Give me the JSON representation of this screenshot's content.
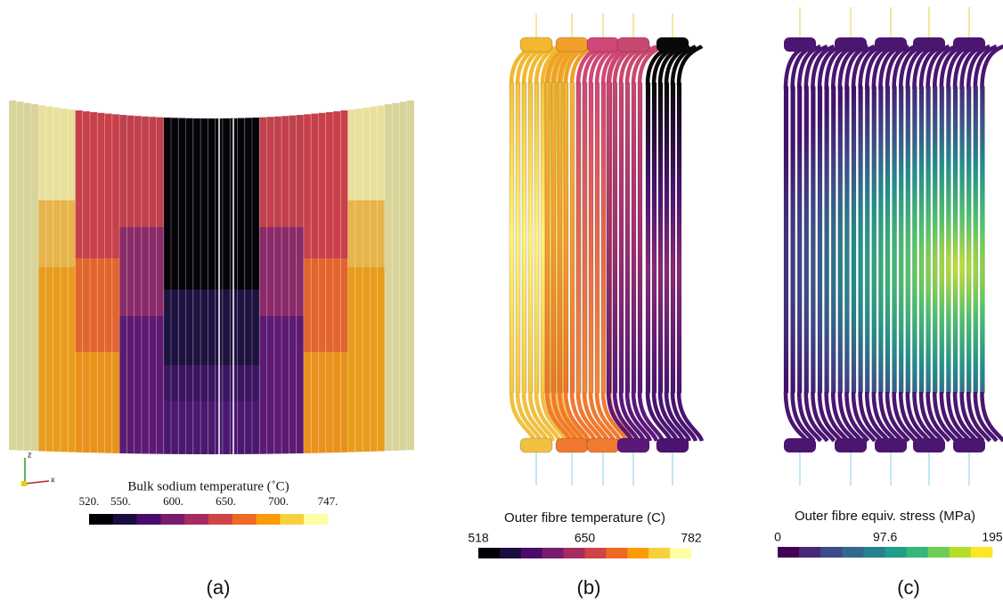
{
  "panels": [
    {
      "label": "(a)",
      "axes": [
        "z",
        "x"
      ],
      "colorbar": {
        "title": "Bulk sodium temperature (˚C)",
        "ticks": [
          "520.",
          "550.",
          "600.",
          "650.",
          "700.",
          "747."
        ],
        "colors": [
          "#000004",
          "#1b0c41",
          "#4a0c6b",
          "#781c6d",
          "#a52c60",
          "#cf4446",
          "#ed6925",
          "#fb9b06",
          "#f7d13d",
          "#fcffa4"
        ]
      }
    },
    {
      "label": "(b)",
      "colorbar": {
        "title": "Outer fibre temperature (C)",
        "ticks": [
          "518",
          "650",
          "782"
        ],
        "colors": [
          "#000004",
          "#1b0c41",
          "#4a0c6b",
          "#781c6d",
          "#a52c60",
          "#cf4446",
          "#ed6925",
          "#fb9b06",
          "#f7d13d",
          "#fcffa4"
        ]
      }
    },
    {
      "label": "(c)",
      "colorbar": {
        "title": "Outer fibre equiv. stress (MPa)",
        "ticks": [
          "0",
          "97.6",
          "195"
        ],
        "colors": [
          "#440154",
          "#482878",
          "#3e4989",
          "#31688e",
          "#26828e",
          "#1f9e89",
          "#35b779",
          "#6ece58",
          "#b5de2b",
          "#fde725"
        ]
      }
    }
  ]
}
